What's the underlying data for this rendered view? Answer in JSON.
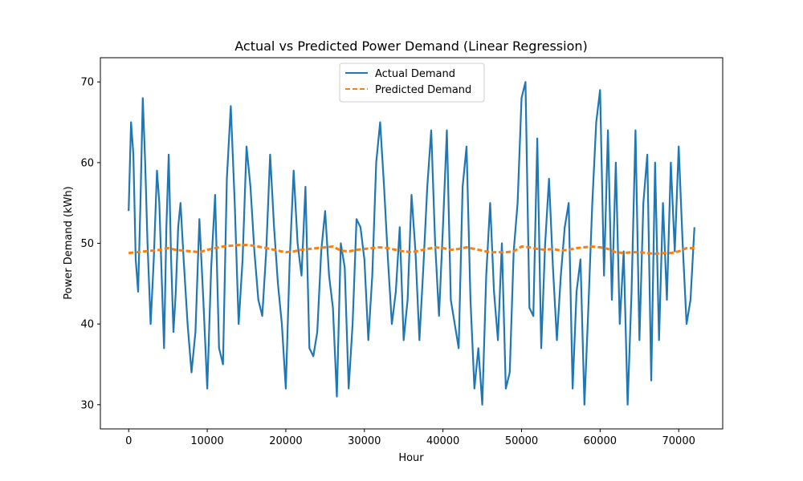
{
  "chart_data": {
    "type": "line",
    "title": "Actual vs Predicted Power Demand (Linear Regression)",
    "xlabel": "Hour",
    "ylabel": "Power Demand (kWh)",
    "xlim": [
      -3600,
      75600
    ],
    "ylim": [
      27,
      73
    ],
    "xticks": [
      0,
      10000,
      20000,
      30000,
      40000,
      50000,
      60000,
      70000
    ],
    "yticks": [
      30,
      40,
      50,
      60,
      70
    ],
    "legend_position": "upper center",
    "series": [
      {
        "name": "Actual Demand",
        "color": "#1f77b4",
        "style": "solid",
        "x": [
          0,
          300,
          600,
          900,
          1200,
          1500,
          1800,
          2100,
          2400,
          2800,
          3200,
          3600,
          3900,
          4200,
          4500,
          4800,
          5100,
          5400,
          5700,
          6000,
          6300,
          6600,
          7000,
          7500,
          8000,
          8500,
          9000,
          9500,
          10000,
          10500,
          11000,
          11500,
          12000,
          12500,
          13000,
          13500,
          14000,
          14500,
          15000,
          15500,
          16000,
          16500,
          17000,
          17500,
          18000,
          18500,
          19000,
          19500,
          20000,
          20500,
          21000,
          21500,
          22000,
          22500,
          23000,
          23500,
          24000,
          24500,
          25000,
          25500,
          26000,
          26500,
          27000,
          27500,
          28000,
          28500,
          29000,
          29500,
          30000,
          30500,
          31000,
          31500,
          32000,
          32500,
          33000,
          33500,
          34000,
          34500,
          35000,
          35500,
          36000,
          36500,
          37000,
          37500,
          38000,
          38500,
          39000,
          39500,
          40000,
          40500,
          41000,
          41500,
          42000,
          42500,
          43000,
          43500,
          44000,
          44500,
          45000,
          45500,
          46000,
          46500,
          47000,
          47500,
          48000,
          48500,
          49000,
          49500,
          50000,
          50500,
          51000,
          51500,
          52000,
          52500,
          53000,
          53500,
          54000,
          54500,
          55000,
          55500,
          56000,
          56500,
          57000,
          57500,
          58000,
          58500,
          59000,
          59500,
          60000,
          60500,
          61000,
          61500,
          62000,
          62500,
          63000,
          63500,
          64000,
          64500,
          65000,
          65500,
          66000,
          66500,
          67000,
          67500,
          68000,
          68500,
          69000,
          69500,
          70000,
          70500,
          71000,
          71500,
          72000
        ],
        "y": [
          54,
          65,
          61,
          48,
          44,
          55,
          68,
          60,
          50,
          40,
          48,
          59,
          55,
          46,
          37,
          52,
          61,
          48,
          39,
          44,
          52,
          55,
          48,
          40,
          34,
          39,
          53,
          43,
          32,
          47,
          56,
          37,
          35,
          58,
          67,
          55,
          40,
          48,
          62,
          57,
          49,
          43,
          41,
          49,
          61,
          52,
          45,
          40,
          32,
          48,
          59,
          50,
          46,
          57,
          37,
          36,
          39,
          49,
          54,
          46,
          42,
          31,
          50,
          47,
          32,
          40,
          53,
          52,
          48,
          38,
          46,
          60,
          65,
          57,
          48,
          40,
          44,
          52,
          38,
          43,
          56,
          49,
          38,
          47,
          57,
          64,
          50,
          41,
          52,
          64,
          43,
          40,
          37,
          57,
          62,
          43,
          32,
          37,
          30,
          46,
          55,
          44,
          38,
          50,
          32,
          34,
          49,
          55,
          68,
          70,
          42,
          41,
          63,
          37,
          50,
          58,
          47,
          38,
          46,
          52,
          55,
          32,
          44,
          48,
          30,
          42,
          55,
          65,
          69,
          46,
          64,
          43,
          60,
          40,
          49,
          30,
          44,
          64,
          38,
          55,
          61,
          33,
          60,
          38,
          55,
          43,
          60,
          49,
          62,
          50,
          40,
          43,
          52
        ]
      },
      {
        "name": "Predicted Demand",
        "color": "#ff7f0e",
        "style": "dashed",
        "x": [
          0,
          1000,
          2000,
          3000,
          4000,
          5000,
          6000,
          7000,
          8000,
          9000,
          10000,
          11000,
          12000,
          13000,
          14000,
          15000,
          16000,
          17000,
          18000,
          19000,
          20000,
          21000,
          22000,
          23000,
          24000,
          25000,
          26000,
          27000,
          28000,
          29000,
          30000,
          31000,
          32000,
          33000,
          34000,
          35000,
          36000,
          37000,
          38000,
          39000,
          40000,
          41000,
          42000,
          43000,
          44000,
          45000,
          46000,
          47000,
          48000,
          49000,
          50000,
          51000,
          52000,
          53000,
          54000,
          55000,
          56000,
          57000,
          58000,
          59000,
          60000,
          61000,
          62000,
          63000,
          64000,
          65000,
          66000,
          67000,
          68000,
          69000,
          70000,
          71000,
          72000
        ],
        "y": [
          48.8,
          48.9,
          49.0,
          49.1,
          49.2,
          49.4,
          49.2,
          49.1,
          49.0,
          48.9,
          49.2,
          49.4,
          49.6,
          49.7,
          49.8,
          49.8,
          49.7,
          49.5,
          49.3,
          49.1,
          48.9,
          49.0,
          49.2,
          49.3,
          49.4,
          49.5,
          49.6,
          49.1,
          49.0,
          49.2,
          49.3,
          49.4,
          49.5,
          49.4,
          49.2,
          49.0,
          48.9,
          49.1,
          49.3,
          49.5,
          49.4,
          49.2,
          49.3,
          49.5,
          49.3,
          49.1,
          48.9,
          48.9,
          48.9,
          49.0,
          49.6,
          49.5,
          49.3,
          49.2,
          49.3,
          49.1,
          49.2,
          49.4,
          49.5,
          49.6,
          49.5,
          49.3,
          48.9,
          48.8,
          48.9,
          48.9,
          48.8,
          48.7,
          48.8,
          48.8,
          49.0,
          49.4,
          49.4
        ]
      }
    ]
  }
}
